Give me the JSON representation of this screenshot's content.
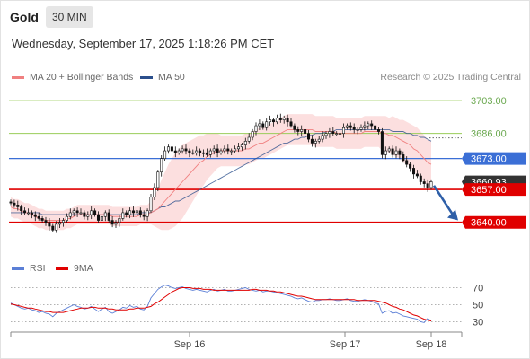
{
  "header": {
    "title": "Gold",
    "timeframe": "30 MIN",
    "datetime": "Wednesday, September 17, 2025 1:18:26 PM CET"
  },
  "legend": {
    "ma20": "MA 20 + Bollinger Bands",
    "ma50": "MA 50",
    "credit": "Research © 2025 Trading Central"
  },
  "colors": {
    "ma20": "#f08080",
    "ma50": "#2b4f8c",
    "bands": "#fbd9d9",
    "resistance_green": "#9acd5a",
    "level_blue": "#3b6fd6",
    "level_red": "#e00000",
    "arrow": "#2e5fa8",
    "rsi": "#5b7fd6",
    "rsi_ma": "#e00000"
  },
  "price_labels": [
    "3703.00",
    "3686.00",
    "3673.00",
    "3660.93",
    "3657.00",
    "3640.00"
  ],
  "rsi_legend": {
    "rsi": "RSI",
    "ma9": "9MA"
  },
  "chart_data": [
    {
      "type": "candlestick",
      "title": "Gold",
      "interval": "30 MIN",
      "ylim": [
        3625,
        3710
      ],
      "x_ticks": [
        "Sep 16",
        "Sep 17",
        "Sep 18"
      ],
      "levels": [
        {
          "label": "3703.00",
          "value": 3703.0,
          "color": "green"
        },
        {
          "label": "3686.00",
          "value": 3686.0,
          "color": "green"
        },
        {
          "label": "3673.00",
          "value": 3673.0,
          "color": "blue"
        },
        {
          "label": "3660.93",
          "value": 3660.93,
          "color": "dark"
        },
        {
          "label": "3657.00",
          "value": 3657.0,
          "color": "red"
        },
        {
          "label": "3640.00",
          "value": 3640.0,
          "color": "red"
        }
      ],
      "last_price": 3660.93,
      "close": [
        3650,
        3649,
        3648,
        3646,
        3645,
        3645,
        3644,
        3643,
        3642,
        3641,
        3640,
        3638,
        3636,
        3639,
        3640,
        3641,
        3643,
        3645,
        3646,
        3645,
        3645,
        3643,
        3644,
        3646,
        3644,
        3641,
        3643,
        3645,
        3641,
        3639,
        3640,
        3642,
        3645,
        3644,
        3646,
        3645,
        3646,
        3644,
        3643,
        3646,
        3653,
        3658,
        3666,
        3673,
        3677,
        3679,
        3677,
        3676,
        3677,
        3678,
        3677,
        3676,
        3676,
        3677,
        3676,
        3676,
        3675,
        3677,
        3678,
        3676,
        3677,
        3678,
        3677,
        3677,
        3678,
        3679,
        3680,
        3682,
        3684,
        3687,
        3690,
        3691,
        3689,
        3692,
        3693,
        3692,
        3694,
        3693,
        3694,
        3692,
        3690,
        3688,
        3687,
        3688,
        3686,
        3683,
        3681,
        3682,
        3683,
        3685,
        3686,
        3687,
        3686,
        3686,
        3686,
        3689,
        3690,
        3689,
        3688,
        3688,
        3689,
        3690,
        3691,
        3690,
        3688,
        3687,
        3675,
        3677,
        3678,
        3675,
        3677,
        3675,
        3672,
        3670,
        3668,
        3665,
        3664,
        3661,
        3660,
        3658,
        3661
      ],
      "ma20": [
        3648,
        3647,
        3647,
        3646,
        3645,
        3645,
        3644,
        3643,
        3642,
        3642,
        3641,
        3641,
        3641,
        3641,
        3641,
        3641,
        3642,
        3642,
        3643,
        3644,
        3644,
        3644,
        3644,
        3644,
        3644,
        3644,
        3644,
        3644,
        3644,
        3643,
        3643,
        3643,
        3643,
        3643,
        3643,
        3643,
        3643,
        3644,
        3644,
        3644,
        3645,
        3646,
        3647,
        3649,
        3651,
        3653,
        3655,
        3657,
        3659,
        3661,
        3663,
        3665,
        3667,
        3669,
        3671,
        3672,
        3674,
        3675,
        3676,
        3677,
        3677,
        3677,
        3677,
        3677,
        3677,
        3677,
        3677,
        3678,
        3678,
        3679,
        3680,
        3681,
        3681,
        3682,
        3683,
        3684,
        3685,
        3686,
        3687,
        3688,
        3688,
        3688,
        3688,
        3688,
        3688,
        3688,
        3688,
        3687,
        3687,
        3687,
        3687,
        3687,
        3687,
        3686,
        3686,
        3686,
        3686,
        3686,
        3686,
        3686,
        3686,
        3687,
        3687,
        3687,
        3687,
        3687,
        3686,
        3686,
        3685,
        3685,
        3684,
        3683,
        3682,
        3681,
        3680,
        3678,
        3677,
        3675,
        3673,
        3671,
        3670
      ],
      "ma50": [
        3645,
        3645,
        3645,
        3645,
        3645,
        3645,
        3645,
        3645,
        3645,
        3644,
        3644,
        3644,
        3644,
        3644,
        3644,
        3644,
        3644,
        3644,
        3644,
        3644,
        3644,
        3644,
        3644,
        3644,
        3644,
        3644,
        3644,
        3644,
        3644,
        3644,
        3644,
        3644,
        3644,
        3644,
        3644,
        3644,
        3644,
        3645,
        3645,
        3645,
        3645,
        3646,
        3647,
        3648,
        3648,
        3649,
        3650,
        3651,
        3651,
        3652,
        3653,
        3654,
        3655,
        3656,
        3657,
        3658,
        3659,
        3660,
        3661,
        3662,
        3663,
        3664,
        3665,
        3666,
        3667,
        3668,
        3669,
        3670,
        3671,
        3672,
        3673,
        3674,
        3675,
        3676,
        3677,
        3678,
        3679,
        3680,
        3681,
        3681,
        3682,
        3683,
        3683,
        3684,
        3684,
        3685,
        3685,
        3686,
        3686,
        3686,
        3687,
        3687,
        3687,
        3688,
        3688,
        3688,
        3688,
        3688,
        3688,
        3688,
        3688,
        3688,
        3688,
        3688,
        3688,
        3688,
        3688,
        3688,
        3688,
        3687,
        3687,
        3687,
        3687,
        3686,
        3686,
        3685,
        3685,
        3684,
        3684,
        3683,
        3682
      ],
      "bb_width": [
        5,
        5,
        5,
        5,
        5,
        5,
        5,
        5,
        5,
        5,
        5,
        5,
        5,
        5,
        5,
        5,
        5,
        5,
        5,
        5,
        5,
        5,
        5,
        5,
        5,
        5,
        5,
        5,
        5,
        5,
        5,
        5,
        5,
        5,
        5,
        5,
        5,
        5,
        5,
        5,
        6,
        8,
        10,
        13,
        15,
        17,
        18,
        19,
        19,
        19,
        18,
        17,
        16,
        15,
        14,
        13,
        12,
        11,
        10,
        9,
        8,
        8,
        8,
        8,
        8,
        8,
        8,
        8,
        8,
        8,
        8,
        8,
        8,
        8,
        8,
        8,
        8,
        8,
        8,
        8,
        8,
        8,
        8,
        8,
        8,
        8,
        8,
        8,
        8,
        8,
        8,
        8,
        8,
        8,
        8,
        8,
        8,
        8,
        8,
        8,
        8,
        8,
        8,
        8,
        8,
        8,
        9,
        9,
        9,
        10,
        10,
        10,
        11,
        11,
        11,
        12,
        12,
        12,
        12,
        12,
        12
      ]
    },
    {
      "type": "line",
      "title": "RSI",
      "ylim": [
        20,
        80
      ],
      "y_ticks": [
        70,
        50,
        30
      ],
      "series": [
        {
          "name": "RSI",
          "values": [
            52,
            50,
            48,
            46,
            45,
            46,
            44,
            43,
            41,
            42,
            40,
            39,
            36,
            40,
            42,
            44,
            46,
            48,
            50,
            48,
            47,
            45,
            46,
            48,
            45,
            42,
            45,
            47,
            42,
            40,
            42,
            44,
            47,
            46,
            49,
            47,
            48,
            45,
            44,
            48,
            58,
            63,
            68,
            71,
            73,
            72,
            70,
            69,
            70,
            71,
            69,
            68,
            67,
            68,
            67,
            66,
            65,
            67,
            68,
            66,
            67,
            68,
            66,
            66,
            67,
            68,
            69,
            70,
            68,
            67,
            66,
            67,
            65,
            66,
            66,
            65,
            64,
            63,
            62,
            61,
            60,
            58,
            57,
            58,
            56,
            54,
            53,
            55,
            55,
            56,
            56,
            57,
            56,
            55,
            55,
            56,
            57,
            55,
            54,
            54,
            55,
            56,
            55,
            54,
            52,
            51,
            40,
            42,
            43,
            40,
            41,
            39,
            37,
            36,
            35,
            34,
            33,
            30,
            29,
            34,
            31
          ]
        },
        {
          "name": "9MA",
          "values": [
            51,
            50,
            49,
            48,
            47,
            46,
            46,
            45,
            44,
            43,
            42,
            42,
            41,
            41,
            41,
            41,
            42,
            43,
            44,
            45,
            46,
            46,
            46,
            47,
            47,
            46,
            46,
            46,
            45,
            45,
            44,
            44,
            44,
            44,
            45,
            45,
            46,
            46,
            46,
            47,
            48,
            51,
            53,
            56,
            59,
            62,
            65,
            67,
            69,
            70,
            70,
            70,
            69,
            69,
            69,
            68,
            68,
            68,
            67,
            67,
            67,
            67,
            67,
            67,
            67,
            67,
            67,
            67,
            67,
            68,
            68,
            67,
            67,
            67,
            66,
            66,
            65,
            65,
            64,
            63,
            62,
            61,
            60,
            60,
            59,
            58,
            57,
            56,
            56,
            56,
            56,
            56,
            56,
            56,
            56,
            56,
            56,
            56,
            56,
            55,
            55,
            55,
            55,
            55,
            55,
            54,
            53,
            52,
            50,
            48,
            47,
            45,
            44,
            42,
            40,
            38,
            37,
            35,
            33,
            32,
            31
          ]
        }
      ]
    }
  ]
}
